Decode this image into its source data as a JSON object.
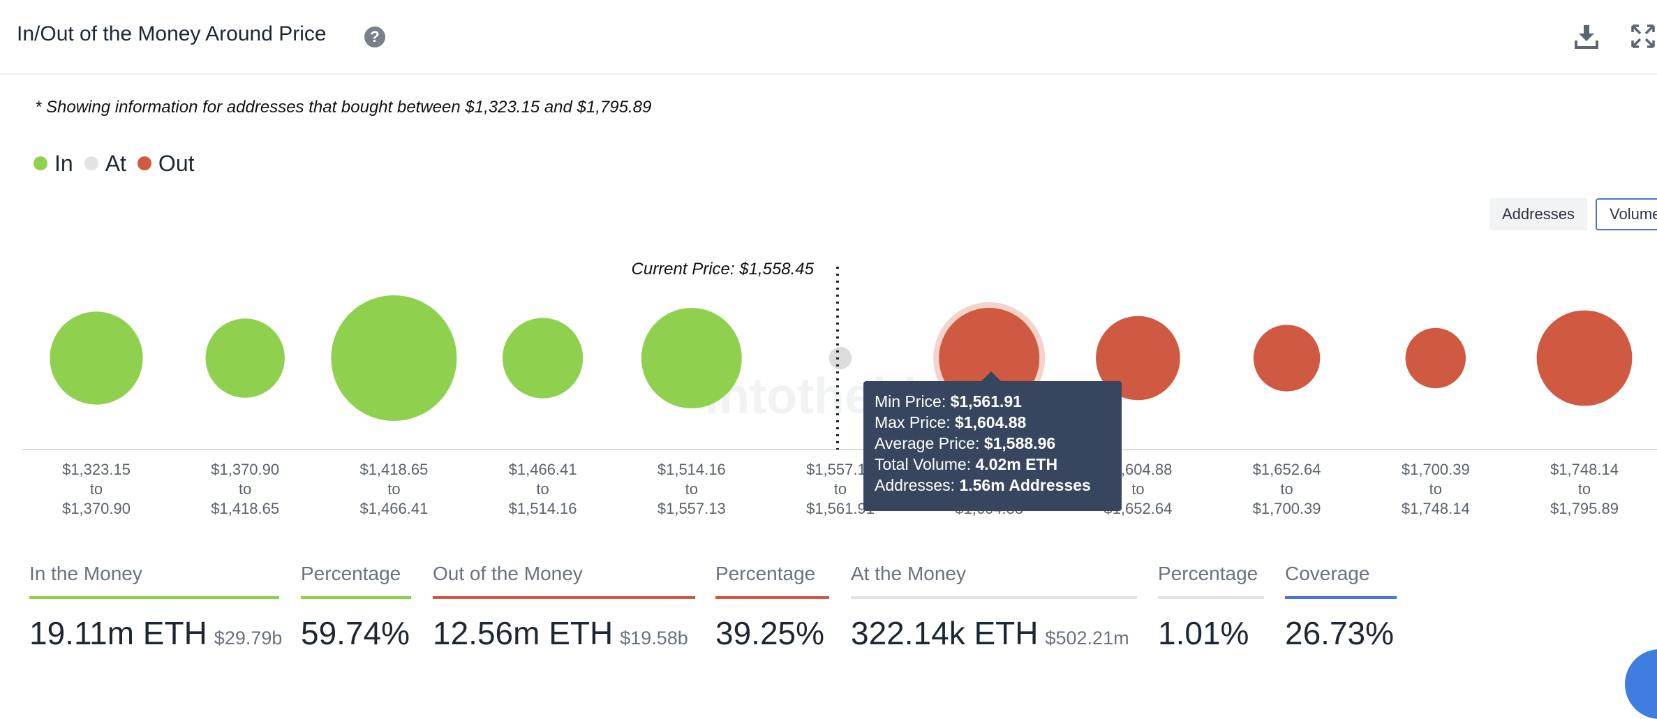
{
  "header": {
    "title": "In/Out of the Money Around Price",
    "help_icon": "?",
    "download_icon": "download-icon",
    "expand_icon": "expand-icon"
  },
  "note": "* Showing information for addresses that bought between $1,323.15 and $1,795.89",
  "legend": [
    {
      "label": "In",
      "color": "#8fd14f"
    },
    {
      "label": "At",
      "color": "#e3e3e3"
    },
    {
      "label": "Out",
      "color": "#cf5a41"
    }
  ],
  "toggle": {
    "addresses_label": "Addresses",
    "volume_label": "Volume"
  },
  "chart_data": {
    "type": "bubble",
    "current_price_label": "Current Price: $1,558.45",
    "current_price": 1558.45,
    "colors": {
      "in": "#8fd14f",
      "at": "#dcdcdc",
      "out": "#cf5a41"
    },
    "buckets": [
      {
        "from": "$1,323.15",
        "to": "$1,370.90",
        "status": "in",
        "relative_size": 0.74
      },
      {
        "from": "$1,370.90",
        "to": "$1,418.65",
        "status": "in",
        "relative_size": 0.63
      },
      {
        "from": "$1,418.65",
        "to": "$1,466.41",
        "status": "in",
        "relative_size": 1.0
      },
      {
        "from": "$1,466.41",
        "to": "$1,514.16",
        "status": "in",
        "relative_size": 0.64
      },
      {
        "from": "$1,514.16",
        "to": "$1,557.13",
        "status": "in",
        "relative_size": 0.8
      },
      {
        "from": "$1,557.13",
        "to": "$1,561.91",
        "status": "at",
        "relative_size": 0.18
      },
      {
        "from": "$1,561.91",
        "to": "$1,604.88",
        "status": "out",
        "relative_size": 0.8,
        "highlighted": true
      },
      {
        "from": "$1,604.88",
        "to": "$1,652.64",
        "status": "out",
        "relative_size": 0.67
      },
      {
        "from": "$1,652.64",
        "to": "$1,700.39",
        "status": "out",
        "relative_size": 0.53
      },
      {
        "from": "$1,700.39",
        "to": "$1,748.14",
        "status": "out",
        "relative_size": 0.48
      },
      {
        "from": "$1,748.14",
        "to": "$1,795.89",
        "status": "out",
        "relative_size": 0.76
      }
    ],
    "range_connector": "to",
    "watermark": "intotheblock"
  },
  "tooltip": {
    "min_price_label": "Min Price:",
    "min_price": "$1,561.91",
    "max_price_label": "Max Price:",
    "max_price": "$1,604.88",
    "avg_price_label": "Average Price:",
    "avg_price": "$1,588.96",
    "volume_label": "Total Volume:",
    "volume": "4.02m ETH",
    "addresses_label": "Addresses:",
    "addresses": "1.56m Addresses"
  },
  "stats": {
    "in": {
      "label": "In the Money",
      "value": "19.11m ETH",
      "sub": "$29.79b",
      "color": "#8fd14f"
    },
    "in_pct": {
      "label": "Percentage",
      "value": "59.74%",
      "color": "#8fd14f"
    },
    "out": {
      "label": "Out of the Money",
      "value": "12.56m ETH",
      "sub": "$19.58b",
      "color": "#cf5a41"
    },
    "out_pct": {
      "label": "Percentage",
      "value": "39.25%",
      "color": "#cf5a41"
    },
    "at": {
      "label": "At the Money",
      "value": "322.14k ETH",
      "sub": "$502.21m",
      "color": "#e3e3e3"
    },
    "at_pct": {
      "label": "Percentage",
      "value": "1.01%",
      "color": "#e3e3e3"
    },
    "coverage": {
      "label": "Coverage",
      "value": "26.73%",
      "color": "#4a74d6"
    }
  }
}
